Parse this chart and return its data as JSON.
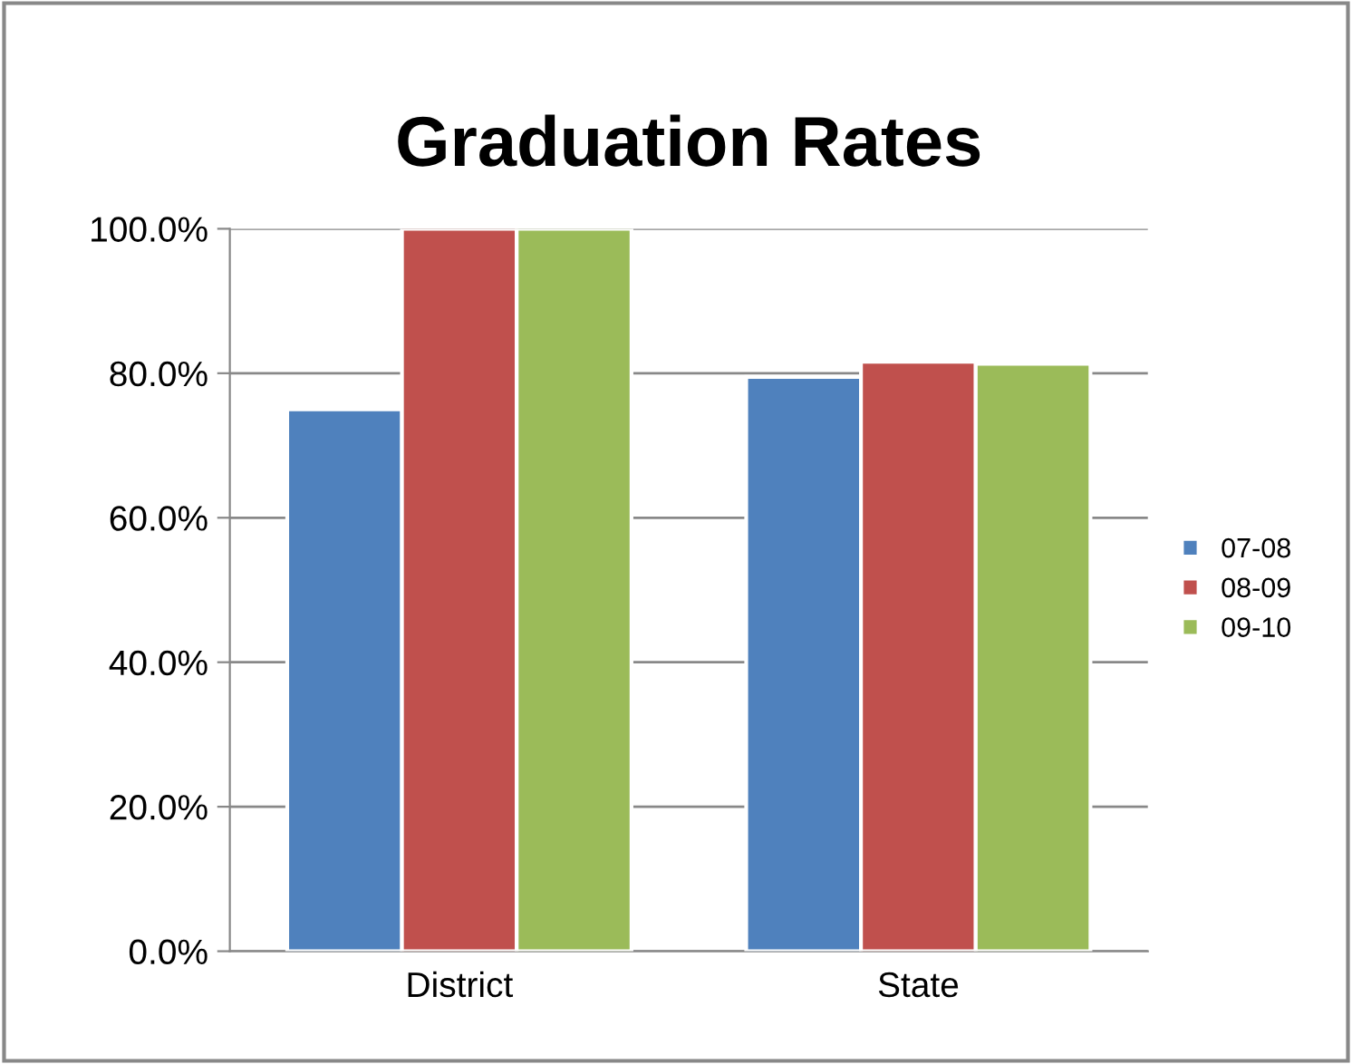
{
  "chart_data": {
    "type": "bar",
    "title": "Graduation Rates",
    "categories": [
      "District",
      "State"
    ],
    "series": [
      {
        "name": "07-08",
        "color": "#4f81bd",
        "values": [
          75.0,
          79.5
        ]
      },
      {
        "name": "08-09",
        "color": "#c0504d",
        "values": [
          100.0,
          81.6
        ]
      },
      {
        "name": "09-10",
        "color": "#9bbb59",
        "values": [
          100.0,
          81.3
        ]
      }
    ],
    "ylim": [
      0,
      100
    ],
    "yticks": [
      {
        "value": 0,
        "label": "0.0%"
      },
      {
        "value": 20,
        "label": "20.0%"
      },
      {
        "value": 40,
        "label": "40.0%"
      },
      {
        "value": 60,
        "label": "60.0%"
      },
      {
        "value": 80,
        "label": "80.0%"
      },
      {
        "value": 100,
        "label": "100.0%"
      }
    ],
    "grid": "y",
    "legend": "right"
  }
}
